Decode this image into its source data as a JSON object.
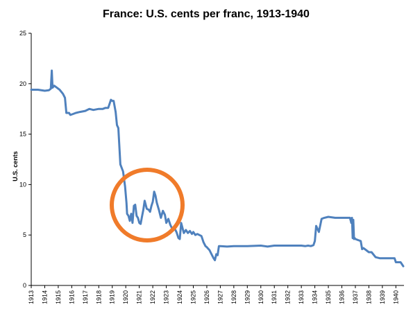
{
  "chart_data": {
    "type": "line",
    "title": "France: U.S. cents per franc, 1913-1940",
    "xlabel": "",
    "ylabel": "U.S. cents",
    "xlim": [
      1913.0,
      1940.6
    ],
    "ylim": [
      0,
      25
    ],
    "yticks": [
      0,
      5,
      10,
      15,
      20,
      25
    ],
    "xticks": [
      "1913",
      "1914",
      "1915",
      "1916",
      "1917",
      "1918",
      "1919",
      "1920",
      "1921",
      "1922",
      "1923",
      "1924",
      "1925",
      "1926",
      "1927",
      "1928",
      "1929",
      "1930",
      "1931",
      "1932",
      "1933",
      "1934",
      "1935",
      "1936",
      "1937",
      "1938",
      "1939",
      "1940"
    ],
    "grid": false,
    "legend": "none",
    "series": [
      {
        "color": "#4f81bd",
        "x": [
          1913.0,
          1913.5,
          1914.0,
          1914.3,
          1914.45,
          1914.52,
          1914.58,
          1914.7,
          1914.9,
          1915.1,
          1915.35,
          1915.5,
          1915.6,
          1915.8,
          1915.9,
          1916.1,
          1916.3,
          1916.6,
          1917.0,
          1917.3,
          1917.6,
          1918.0,
          1918.3,
          1918.5,
          1918.7,
          1918.9,
          1919.0,
          1919.1,
          1919.25,
          1919.35,
          1919.45,
          1919.6,
          1919.8,
          1919.95,
          1920.05,
          1920.1,
          1920.2,
          1920.3,
          1920.4,
          1920.5,
          1920.6,
          1920.7,
          1920.8,
          1920.9,
          1921.0,
          1921.1,
          1921.2,
          1921.3,
          1921.4,
          1921.55,
          1921.7,
          1921.8,
          1921.9,
          1922.0,
          1922.1,
          1922.2,
          1922.3,
          1922.45,
          1922.6,
          1922.75,
          1922.9,
          1923.0,
          1923.15,
          1923.3,
          1923.45,
          1923.6,
          1923.75,
          1923.9,
          1924.0,
          1924.1,
          1924.2,
          1924.3,
          1924.45,
          1924.6,
          1924.75,
          1924.9,
          1925.0,
          1925.15,
          1925.3,
          1925.45,
          1925.6,
          1925.75,
          1925.9,
          1926.0,
          1926.2,
          1926.35,
          1926.5,
          1926.6,
          1926.7,
          1926.8,
          1926.9,
          1927.0,
          1927.5,
          1928.0,
          1929.0,
          1930.0,
          1930.5,
          1931.0,
          1932.0,
          1933.0,
          1933.3,
          1933.5,
          1933.7,
          1933.9,
          1934.0,
          1934.1,
          1934.3,
          1934.5,
          1934.7,
          1935.0,
          1935.5,
          1936.0,
          1936.4,
          1936.6,
          1936.7,
          1936.75,
          1936.8,
          1936.85,
          1936.9,
          1936.95,
          1937.0,
          1937.2,
          1937.4,
          1937.5,
          1937.6,
          1937.8,
          1938.0,
          1938.2,
          1938.5,
          1938.8,
          1939.0,
          1939.4,
          1939.7,
          1939.9,
          1940.0,
          1940.2,
          1940.35,
          1940.45,
          1940.55
        ],
        "y": [
          19.4,
          19.4,
          19.3,
          19.35,
          19.5,
          21.3,
          19.6,
          19.8,
          19.6,
          19.4,
          19.0,
          18.6,
          17.1,
          17.1,
          16.9,
          17.0,
          17.1,
          17.2,
          17.3,
          17.5,
          17.4,
          17.5,
          17.5,
          17.6,
          17.6,
          18.4,
          18.3,
          18.3,
          17.2,
          15.9,
          15.6,
          12.0,
          11.3,
          9.8,
          8.2,
          7.1,
          6.9,
          6.4,
          7.1,
          6.2,
          7.9,
          8.0,
          6.9,
          6.7,
          6.2,
          6.1,
          6.8,
          7.5,
          8.4,
          7.6,
          7.5,
          7.3,
          7.9,
          8.3,
          9.3,
          8.9,
          8.2,
          7.5,
          6.7,
          7.4,
          7.0,
          6.2,
          6.6,
          6.0,
          5.6,
          5.7,
          5.3,
          4.7,
          4.6,
          6.2,
          5.7,
          5.2,
          5.5,
          5.2,
          5.4,
          5.1,
          5.3,
          5.0,
          5.1,
          5.0,
          4.9,
          4.3,
          3.9,
          3.8,
          3.5,
          3.1,
          2.7,
          2.5,
          3.1,
          3.0,
          3.9,
          3.9,
          3.85,
          3.9,
          3.9,
          3.95,
          3.85,
          3.95,
          3.95,
          3.95,
          3.9,
          3.95,
          3.9,
          4.0,
          4.4,
          5.9,
          5.3,
          6.6,
          6.7,
          6.8,
          6.7,
          6.7,
          6.7,
          6.7,
          6.2,
          6.7,
          4.7,
          6.5,
          4.6,
          4.7,
          4.6,
          4.5,
          4.4,
          3.6,
          3.7,
          3.5,
          3.3,
          3.3,
          2.8,
          2.7,
          2.7,
          2.7,
          2.7,
          2.7,
          2.3,
          2.3,
          2.3,
          2.1,
          1.9
        ]
      }
    ]
  }
}
